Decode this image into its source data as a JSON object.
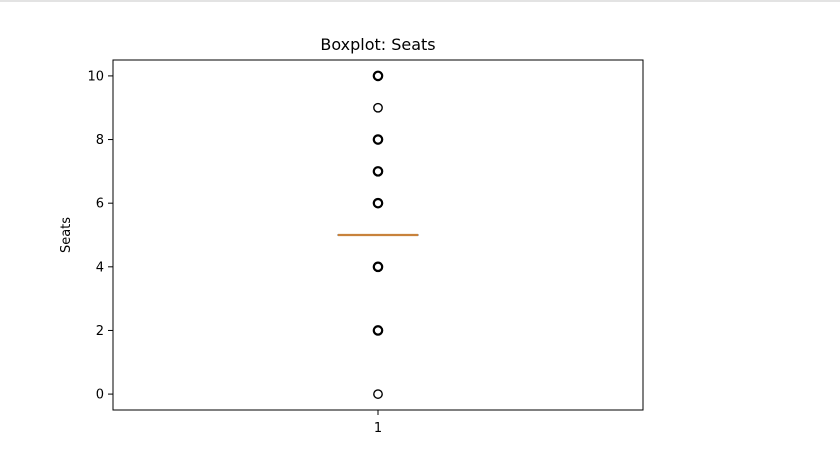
{
  "chart_data": {
    "type": "boxplot",
    "title": "Boxplot: Seats",
    "xlabel": "",
    "ylabel": "Seats",
    "categories": [
      "1"
    ],
    "ylim": [
      -0.5,
      10.5
    ],
    "yticks": [
      "0",
      "2",
      "4",
      "6",
      "8",
      "10"
    ],
    "ytick_values": [
      0,
      2,
      4,
      6,
      8,
      10
    ],
    "box": {
      "q1": 5,
      "median": 5,
      "q3": 5,
      "whisker_low": 5,
      "whisker_high": 5
    },
    "outliers": [
      0,
      2,
      4,
      6,
      7,
      8,
      9,
      10
    ],
    "grid": false,
    "colors": {
      "median": "#c8823c",
      "box": "#000000",
      "outlier": "#000000"
    }
  }
}
